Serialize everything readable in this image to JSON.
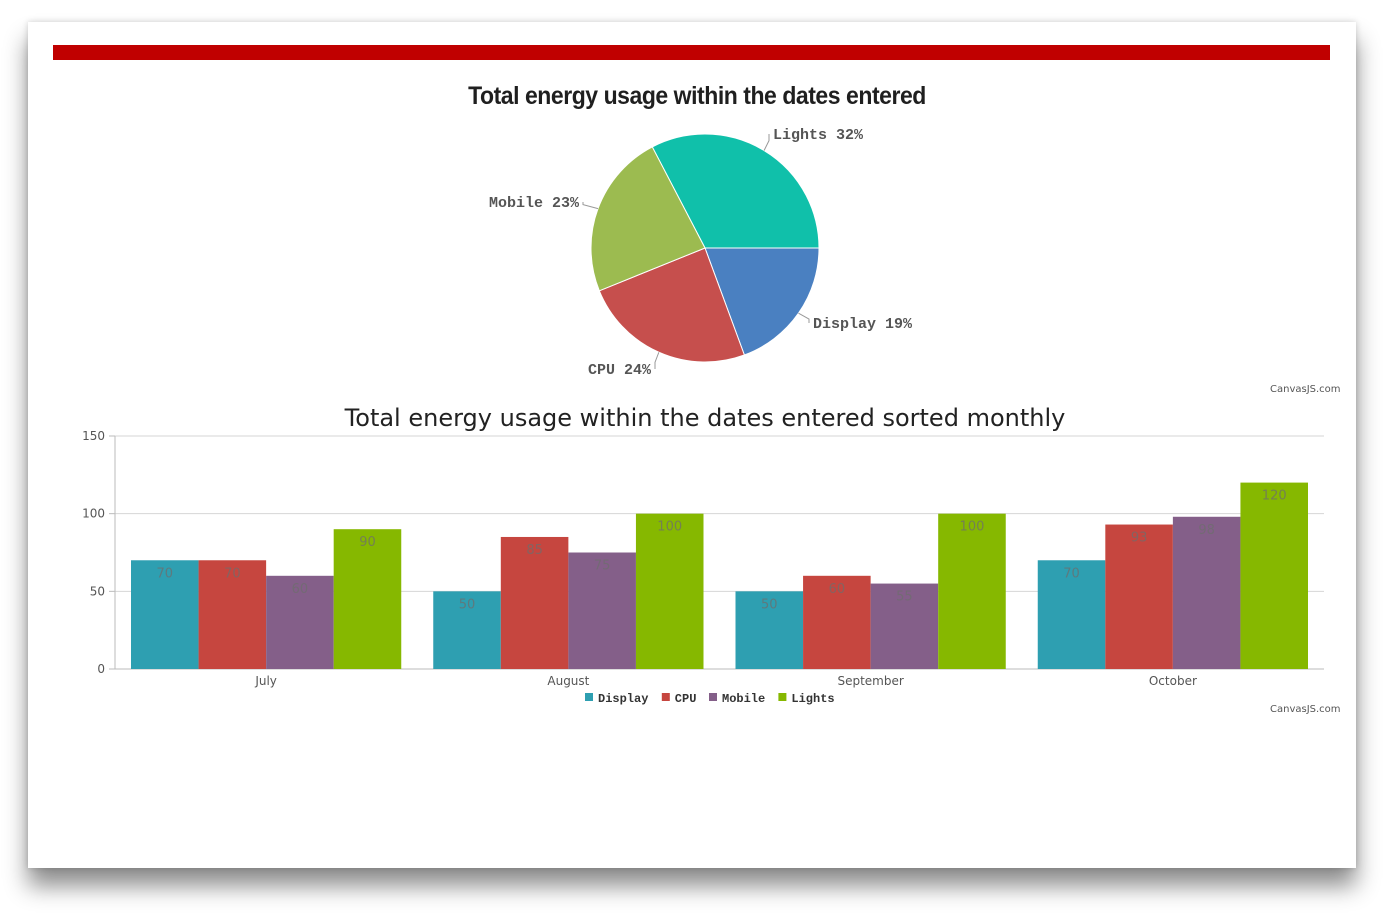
{
  "colors": {
    "frame_bar": "#c00000",
    "Display": "#2e9fb1",
    "CPU": "#c6463f",
    "Mobile": "#845f89",
    "Lights": "#86b800",
    "pie_Lights": "#10c0aa",
    "pie_Display": "#4a80c1",
    "pie_CPU": "#c64f4d",
    "pie_Mobile": "#9cbb50"
  },
  "chart_data": [
    {
      "type": "pie",
      "title": "Total energy usage within the dates entered",
      "slices": [
        {
          "name": "Lights",
          "value": 32,
          "label": "Lights 32%"
        },
        {
          "name": "Display",
          "value": 19,
          "label": "Display 19%"
        },
        {
          "name": "CPU",
          "value": 24,
          "label": "CPU 24%"
        },
        {
          "name": "Mobile",
          "value": 23,
          "label": "Mobile 23%"
        }
      ],
      "credit": "CanvasJS.com"
    },
    {
      "type": "bar",
      "title": "Total energy usage within the dates entered sorted monthly",
      "categories": [
        "July",
        "August",
        "September",
        "October"
      ],
      "series": [
        {
          "name": "Display",
          "values": [
            70,
            50,
            50,
            70
          ]
        },
        {
          "name": "CPU",
          "values": [
            70,
            85,
            60,
            93
          ]
        },
        {
          "name": "Mobile",
          "values": [
            60,
            75,
            55,
            98
          ]
        },
        {
          "name": "Lights",
          "values": [
            90,
            100,
            100,
            120
          ]
        }
      ],
      "ylim": [
        0,
        150
      ],
      "yticks": [
        0,
        50,
        100,
        150
      ],
      "grid": true,
      "legend_position": "bottom",
      "credit": "CanvasJS.com"
    }
  ]
}
